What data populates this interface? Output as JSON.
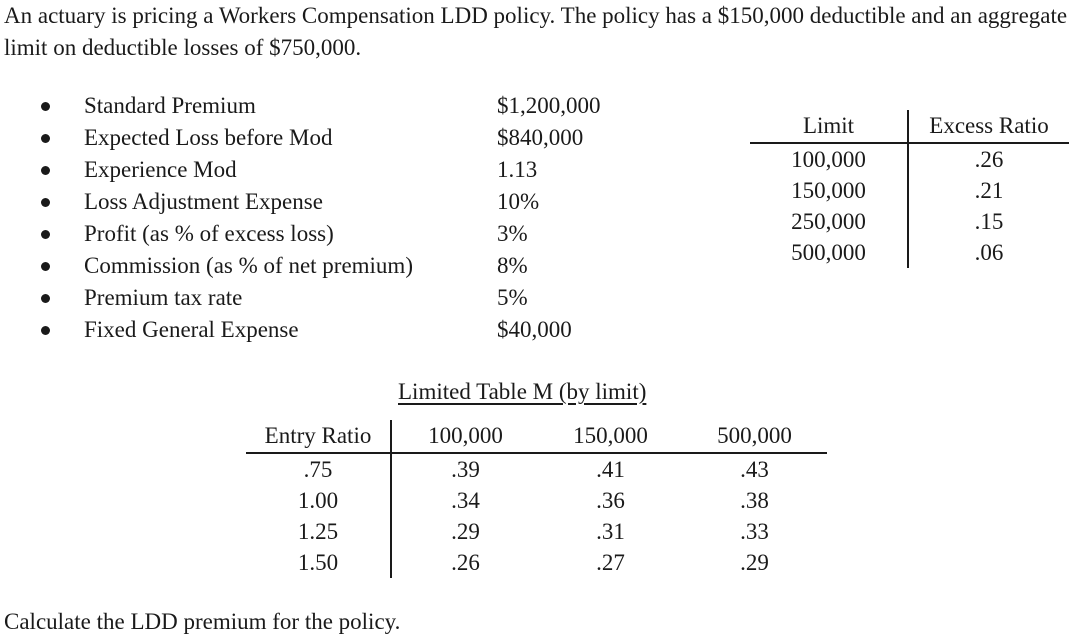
{
  "intro": "An actuary is pricing a Workers Compensation LDD policy. The policy has a $150,000 deductible and an aggregate limit on deductible losses of $750,000.",
  "bullets": [
    {
      "label": "Standard Premium",
      "value": "$1,200,000"
    },
    {
      "label": "Expected Loss before Mod",
      "value": "$840,000"
    },
    {
      "label": "Experience Mod",
      "value": "1.13"
    },
    {
      "label": "Loss Adjustment Expense",
      "value": "10%"
    },
    {
      "label": "Profit (as % of excess loss)",
      "value": "3%"
    },
    {
      "label": "Commission (as % of net premium)",
      "value": "8%"
    },
    {
      "label": "Premium tax rate",
      "value": "5%"
    },
    {
      "label": "Fixed General Expense",
      "value": "$40,000"
    }
  ],
  "excess_table": {
    "headers": [
      "Limit",
      "Excess Ratio"
    ],
    "rows": [
      [
        "100,000",
        ".26"
      ],
      [
        "150,000",
        ".21"
      ],
      [
        "250,000",
        ".15"
      ],
      [
        "500,000",
        ".06"
      ]
    ]
  },
  "table_m": {
    "title": "Limited Table M (by limit)",
    "headers": [
      "Entry Ratio",
      "100,000",
      "150,000",
      "500,000"
    ],
    "rows": [
      [
        ".75",
        ".39",
        ".41",
        ".43"
      ],
      [
        "1.00",
        ".34",
        ".36",
        ".38"
      ],
      [
        "1.25",
        ".29",
        ".31",
        ".33"
      ],
      [
        "1.50",
        ".26",
        ".27",
        ".29"
      ]
    ]
  },
  "question": "Calculate the LDD premium for the policy."
}
